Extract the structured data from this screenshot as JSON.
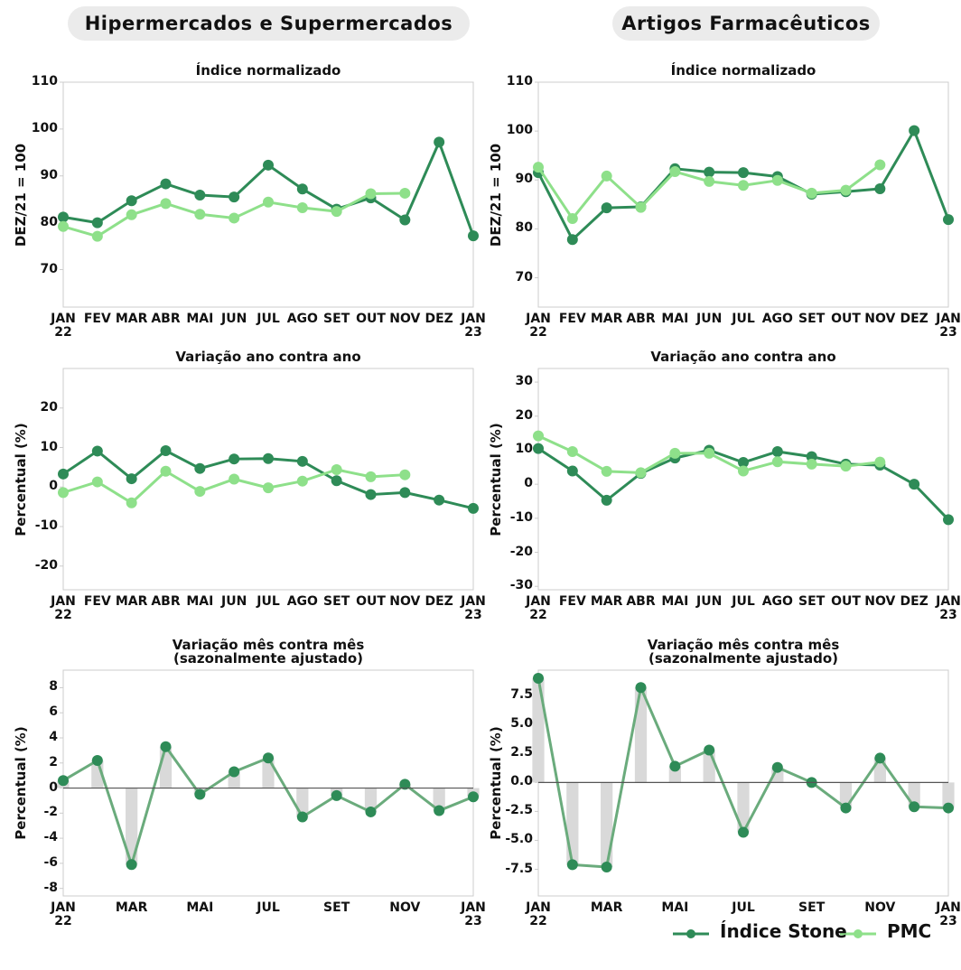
{
  "columns": [
    {
      "title": "Hipermercados e Supermercados"
    },
    {
      "title": "Artigos Farmacêuticos"
    }
  ],
  "chart_data": [
    {
      "type": "line",
      "title": "Índice normalizado",
      "ylabel": "DEZ/21 = 100",
      "categories": [
        "JAN\n22",
        "FEV",
        "MAR",
        "ABR",
        "MAI",
        "JUN",
        "JUL",
        "AGO",
        "SET",
        "OUT",
        "NOV",
        "DEZ",
        "JAN\n23"
      ],
      "series": [
        {
          "name": "Índice Stone",
          "color": "#2e8b57",
          "values": [
            81.2,
            80.0,
            84.7,
            88.3,
            85.9,
            85.5,
            92.3,
            87.2,
            82.9,
            85.3,
            80.6,
            97.2,
            77.2
          ]
        },
        {
          "name": "PMC",
          "color": "#8ee08a",
          "values": [
            79.2,
            77.1,
            81.7,
            84.1,
            81.8,
            81.0,
            84.4,
            83.2,
            82.4,
            86.2,
            86.3,
            null,
            null
          ]
        }
      ],
      "ylim": [
        62,
        110
      ],
      "yticks": [
        70,
        80,
        90,
        100,
        110
      ]
    },
    {
      "type": "line",
      "title": "Índice normalizado",
      "ylabel": "DEZ/21 = 100",
      "categories": [
        "JAN\n22",
        "FEV",
        "MAR",
        "ABR",
        "MAI",
        "JUN",
        "JUL",
        "AGO",
        "SET",
        "OUT",
        "NOV",
        "DEZ",
        "JAN\n23"
      ],
      "series": [
        {
          "name": "Índice Stone",
          "color": "#2e8b57",
          "values": [
            91.5,
            77.8,
            84.3,
            84.5,
            92.3,
            91.6,
            91.5,
            90.7,
            87.1,
            87.6,
            88.2,
            100.1,
            81.9
          ]
        },
        {
          "name": "PMC",
          "color": "#8ee08a",
          "values": [
            92.6,
            82.1,
            90.8,
            84.4,
            91.7,
            89.7,
            88.9,
            89.9,
            87.3,
            87.9,
            93.1,
            null,
            null
          ]
        }
      ],
      "ylim": [
        64,
        110
      ],
      "yticks": [
        70,
        80,
        90,
        100,
        110
      ]
    },
    {
      "type": "line",
      "title": "Variação ano contra ano",
      "ylabel": "Percentual (%)",
      "categories": [
        "JAN\n22",
        "FEV",
        "MAR",
        "ABR",
        "MAI",
        "JUN",
        "JUL",
        "AGO",
        "SET",
        "OUT",
        "NOV",
        "DEZ",
        "JAN\n23"
      ],
      "series": [
        {
          "name": "Índice Stone",
          "color": "#2e8b57",
          "values": [
            3.3,
            9.1,
            2.1,
            9.2,
            4.7,
            7.1,
            7.2,
            6.5,
            1.6,
            -1.9,
            -1.4,
            -3.3,
            -5.4
          ]
        },
        {
          "name": "PMC",
          "color": "#8ee08a",
          "values": [
            -1.4,
            1.3,
            -4.0,
            4.0,
            -1.1,
            2.0,
            -0.2,
            1.5,
            4.4,
            2.6,
            3.1,
            null,
            null
          ]
        }
      ],
      "ylim": [
        -26,
        30
      ],
      "yticks": [
        -20,
        -10,
        0,
        10,
        20
      ]
    },
    {
      "type": "line",
      "title": "Variação ano contra ano",
      "ylabel": "Percentual (%)",
      "categories": [
        "JAN\n22",
        "FEV",
        "MAR",
        "ABR",
        "MAI",
        "JUN",
        "JUL",
        "AGO",
        "SET",
        "OUT",
        "NOV",
        "DEZ",
        "JAN\n23"
      ],
      "series": [
        {
          "name": "Índice Stone",
          "color": "#2e8b57",
          "values": [
            10.5,
            3.9,
            -4.7,
            3.2,
            7.7,
            10.0,
            6.4,
            9.6,
            8.1,
            5.9,
            5.6,
            0.0,
            -10.4
          ]
        },
        {
          "name": "PMC",
          "color": "#8ee08a",
          "values": [
            14.2,
            9.6,
            3.8,
            3.4,
            9.1,
            9.1,
            3.9,
            6.6,
            5.9,
            5.3,
            6.5,
            null,
            null
          ]
        }
      ],
      "ylim": [
        -31,
        34
      ],
      "yticks": [
        -30,
        -20,
        -10,
        0,
        10,
        20,
        30
      ]
    },
    {
      "type": "bar_line",
      "title": "Variação mês contra mês\n(sazonalmente ajustado)",
      "ylabel": "Percentual (%)",
      "categories": [
        "JAN\n22",
        null,
        "MAR",
        null,
        "MAI",
        null,
        "JUL",
        null,
        "SET",
        null,
        "NOV",
        null,
        "JAN\n23"
      ],
      "series": [
        {
          "name": "Índice Stone",
          "color": "#2e8b57",
          "line_color": "#6aab7c",
          "bar_color": "#d9d9d9",
          "values": [
            0.6,
            2.2,
            -6.1,
            3.3,
            -0.5,
            1.3,
            2.4,
            -2.3,
            -0.6,
            -1.9,
            0.3,
            -1.8,
            -0.7
          ]
        }
      ],
      "ylim": [
        -8.6,
        9.4
      ],
      "yticks": [
        -8,
        -6,
        -4,
        -2,
        0,
        2,
        4,
        6,
        8
      ],
      "zero_line": true
    },
    {
      "type": "bar_line",
      "title": "Variação mês contra mês\n(sazonalmente ajustado)",
      "ylabel": "Percentual (%)",
      "categories": [
        "JAN\n22",
        null,
        "MAR",
        null,
        "MAI",
        null,
        "JUL",
        null,
        "SET",
        null,
        "NOV",
        null,
        "JAN\n23"
      ],
      "series": [
        {
          "name": "Índice Stone",
          "color": "#2e8b57",
          "line_color": "#6aab7c",
          "bar_color": "#d9d9d9",
          "values": [
            9.0,
            -7.1,
            -7.3,
            8.2,
            1.4,
            2.8,
            -4.3,
            1.3,
            0.0,
            -2.2,
            2.1,
            -2.1,
            -2.2
          ]
        }
      ],
      "ylim": [
        -9.8,
        9.7
      ],
      "yticks": [
        -7.5,
        {
          "value": -5,
          "label": "-5.0"
        },
        -2.5,
        {
          "value": 0,
          "label": "0.0"
        },
        2.5,
        {
          "value": 5,
          "label": "5.0"
        },
        7.5
      ],
      "zero_line": true
    }
  ]
}
